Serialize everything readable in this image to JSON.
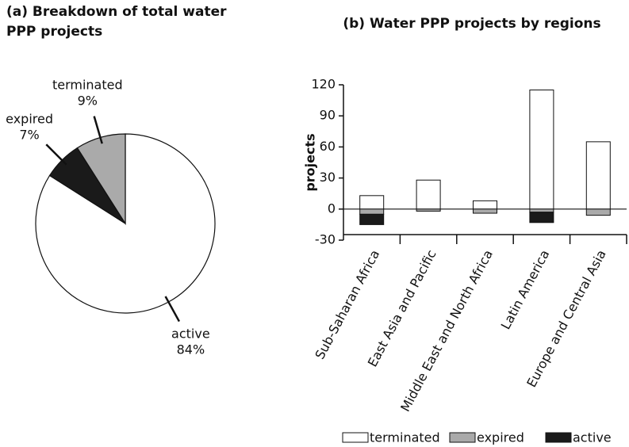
{
  "chart_data": [
    {
      "type": "pie",
      "title": [
        "(a) Breakdown of total water",
        "PPP projects"
      ],
      "categories": [
        "active",
        "expired",
        "terminated"
      ],
      "values": [
        84,
        7,
        9
      ],
      "value_labels": [
        "84%",
        "7%",
        "9%"
      ],
      "colors": [
        "#ffffff",
        "#1a1a1a",
        "#aaaaaa"
      ]
    },
    {
      "type": "bar",
      "stacked": true,
      "title": "(b) Water PPP projects by regions",
      "ylabel": "projects",
      "categories": [
        "Sub-Saharan Africa",
        "East Asia and Pacific",
        "Middle East and North Africa",
        "Latin America",
        "Europe and Central Asia"
      ],
      "series": [
        {
          "name": "terminated",
          "color": "#ffffff",
          "values": [
            13,
            28,
            8,
            115,
            65
          ]
        },
        {
          "name": "expired",
          "color": "#aaaaaa",
          "values": [
            -5,
            -2,
            -4,
            -3,
            -6
          ]
        },
        {
          "name": "active",
          "color": "#1a1a1a",
          "values": [
            -10,
            0,
            0,
            -10,
            0
          ]
        }
      ],
      "ylim": [
        -30,
        120
      ],
      "yticks": [
        -30,
        0,
        30,
        60,
        90,
        120
      ]
    }
  ]
}
